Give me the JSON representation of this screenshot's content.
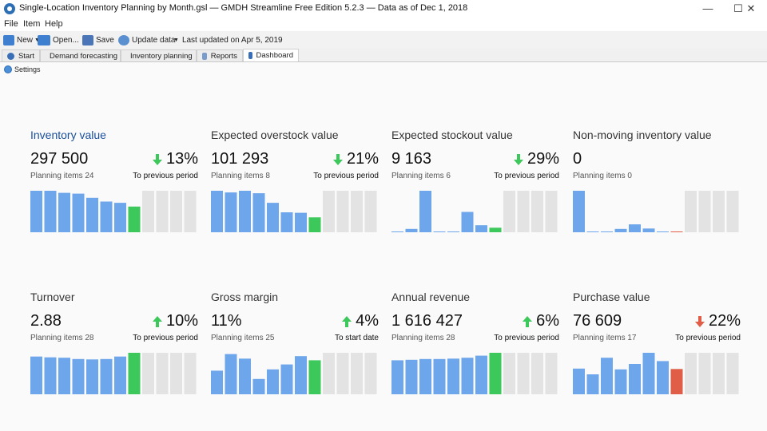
{
  "window": {
    "title": "Single-Location Inventory Planning by Month.gsl — GMDH Streamline Free Edition 5.2.3 — Data as of Dec 1, 2018",
    "minimize": "—",
    "maximize": "☐",
    "close": "✕"
  },
  "menu": [
    "File",
    "Item",
    "Help"
  ],
  "toolbar": {
    "new": "New",
    "open": "Open...",
    "save": "Save",
    "update": "Update data",
    "last_updated": "Last updated on Apr 5, 2019"
  },
  "tabs": [
    {
      "label": "Start",
      "icon": "info-icon"
    },
    {
      "label": "Demand forecasting",
      "icon": "chart-icon"
    },
    {
      "label": "Inventory planning",
      "icon": "tag-icon"
    },
    {
      "label": "Reports",
      "icon": "report-icon"
    },
    {
      "label": "Dashboard",
      "icon": "dashboard-icon"
    }
  ],
  "active_tab": 4,
  "settings_label": "Settings",
  "colors": {
    "blue": "#6ea6ec",
    "green": "#3cc85a",
    "red": "#e05d47",
    "gray": "#e3e3e3",
    "title_blue": "#1a4f9c"
  },
  "cards": [
    {
      "title": "Inventory value",
      "value": "297 500",
      "change": "13%",
      "direction": "down",
      "arrow_color": "#3cc85a",
      "sub": "Planning items 24",
      "comparison": "To previous period",
      "highlight": true,
      "bars": [
        1.0,
        1.0,
        0.95,
        0.93,
        0.83,
        0.74,
        0.71,
        0.62,
        1,
        1,
        1,
        1
      ],
      "bar_types": [
        "b",
        "b",
        "b",
        "b",
        "b",
        "b",
        "b",
        "g",
        "x",
        "x",
        "x",
        "x"
      ]
    },
    {
      "title": "Expected overstock value",
      "value": "101 293",
      "change": "21%",
      "direction": "down",
      "arrow_color": "#3cc85a",
      "sub": "Planning items 8",
      "comparison": "To previous period",
      "highlight": false,
      "bars": [
        1.0,
        0.96,
        1.0,
        0.94,
        0.71,
        0.48,
        0.47,
        0.36,
        1,
        1,
        1,
        1
      ],
      "bar_types": [
        "b",
        "b",
        "b",
        "b",
        "b",
        "b",
        "b",
        "g",
        "x",
        "x",
        "x",
        "x"
      ]
    },
    {
      "title": "Expected stockout value",
      "value": "9 163",
      "change": "29%",
      "direction": "down",
      "arrow_color": "#3cc85a",
      "sub": "Planning items 6",
      "comparison": "To previous period",
      "highlight": false,
      "bars": [
        0.02,
        0.08,
        1.0,
        0.02,
        0.02,
        0.49,
        0.17,
        0.11,
        1,
        1,
        1,
        1
      ],
      "bar_types": [
        "b",
        "b",
        "b",
        "b",
        "b",
        "b",
        "b",
        "g",
        "x",
        "x",
        "x",
        "x"
      ]
    },
    {
      "title": "Non-moving inventory value",
      "value": "0",
      "change": "",
      "direction": "",
      "arrow_color": "",
      "sub": "Planning items 0",
      "comparison": "",
      "highlight": false,
      "bars": [
        1.0,
        0.02,
        0.02,
        0.08,
        0.19,
        0.09,
        0.02,
        0.02,
        1,
        1,
        1,
        1
      ],
      "bar_types": [
        "b",
        "b",
        "b",
        "b",
        "b",
        "b",
        "b",
        "r",
        "x",
        "x",
        "x",
        "x"
      ]
    },
    {
      "title": "Turnover",
      "value": "2.88",
      "change": "10%",
      "direction": "up",
      "arrow_color": "#3cc85a",
      "sub": "Planning items 28",
      "comparison": "To previous period",
      "highlight": false,
      "bars": [
        0.91,
        0.89,
        0.88,
        0.85,
        0.84,
        0.85,
        0.91,
        1.0,
        1,
        1,
        1,
        1
      ],
      "bar_types": [
        "b",
        "b",
        "b",
        "b",
        "b",
        "b",
        "b",
        "g",
        "x",
        "x",
        "x",
        "x"
      ]
    },
    {
      "title": "Gross margin",
      "value": "11%",
      "change": "4%",
      "direction": "up",
      "arrow_color": "#3cc85a",
      "sub": "Planning items 25",
      "comparison": "To start date",
      "highlight": false,
      "bars": [
        0.57,
        0.97,
        0.86,
        0.37,
        0.6,
        0.72,
        0.92,
        0.82,
        1,
        1,
        1,
        1
      ],
      "bar_types": [
        "b",
        "b",
        "b",
        "b",
        "b",
        "b",
        "b",
        "g",
        "x",
        "x",
        "x",
        "x"
      ]
    },
    {
      "title": "Annual revenue",
      "value": "1 616 427",
      "change": "6%",
      "direction": "up",
      "arrow_color": "#3cc85a",
      "sub": "Planning items 28",
      "comparison": "To previous period",
      "highlight": false,
      "bars": [
        0.82,
        0.83,
        0.85,
        0.85,
        0.86,
        0.88,
        0.93,
        1.0,
        1,
        1,
        1,
        1
      ],
      "bar_types": [
        "b",
        "b",
        "b",
        "b",
        "b",
        "b",
        "b",
        "g",
        "x",
        "x",
        "x",
        "x"
      ]
    },
    {
      "title": "Purchase value",
      "value": "76 609",
      "change": "22%",
      "direction": "down",
      "arrow_color": "#e05d47",
      "sub": "Planning items 17",
      "comparison": "To previous period",
      "highlight": false,
      "bars": [
        0.62,
        0.48,
        0.88,
        0.6,
        0.73,
        1.0,
        0.8,
        0.61,
        1,
        1,
        1,
        1
      ],
      "bar_types": [
        "b",
        "b",
        "b",
        "b",
        "b",
        "b",
        "b",
        "r",
        "x",
        "x",
        "x",
        "x"
      ]
    }
  ]
}
